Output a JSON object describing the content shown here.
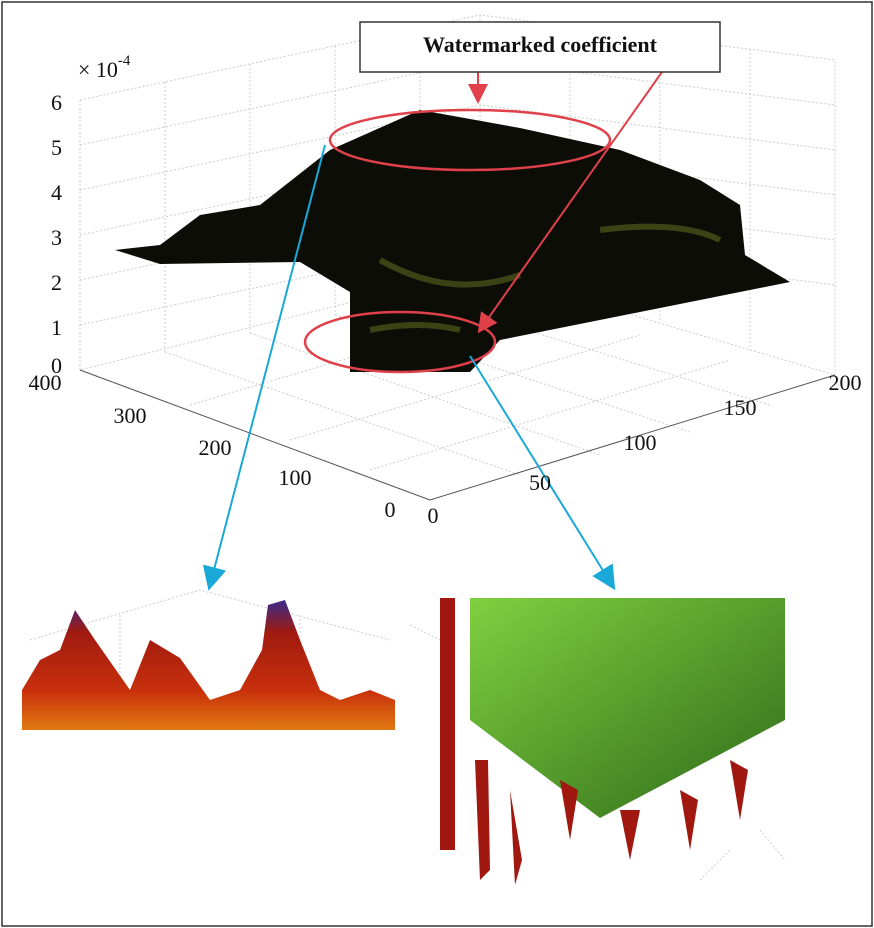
{
  "figure": {
    "annotation": "Watermarked coefficient",
    "z_axis": {
      "multiplier": "× 10",
      "exponent": "-4",
      "ticks": [
        "6",
        "5",
        "4",
        "3",
        "2",
        "1",
        "0"
      ]
    },
    "left_axis": {
      "ticks": [
        "400",
        "300",
        "200",
        "100",
        "0"
      ]
    },
    "right_axis": {
      "ticks": [
        "0",
        "50",
        "100",
        "150",
        "200"
      ]
    }
  }
}
